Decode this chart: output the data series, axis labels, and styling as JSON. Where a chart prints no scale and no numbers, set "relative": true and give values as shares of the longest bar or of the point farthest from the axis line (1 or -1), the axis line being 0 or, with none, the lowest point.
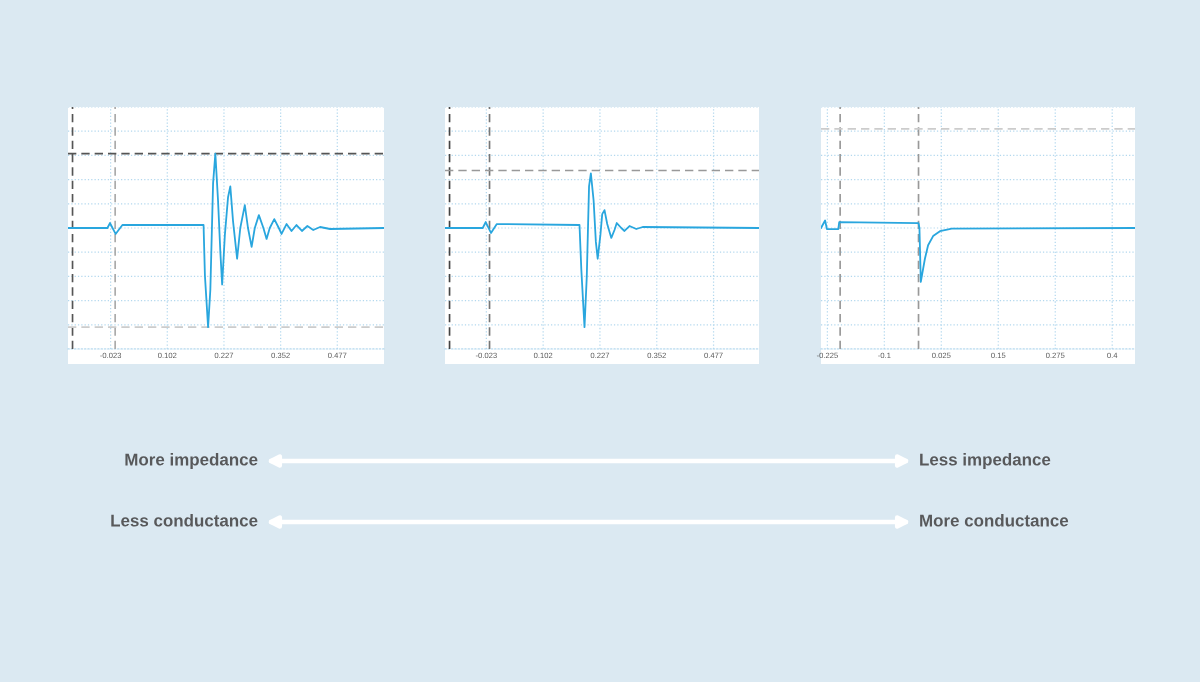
{
  "chart_data": [
    {
      "type": "line",
      "relative": true,
      "tick_labels": "x",
      "grid": true,
      "xlim": [
        -0.117,
        0.58
      ],
      "xticks": [
        -0.023,
        0.102,
        0.227,
        0.352,
        0.477
      ],
      "series": [
        {
          "color": "#29a6de",
          "x": [
            -0.117,
            -0.03,
            -0.0245,
            -0.012,
            0.003,
            0.182,
            0.185,
            0.192,
            0.197,
            0.203,
            0.208,
            0.214,
            0.219,
            0.223,
            0.229,
            0.236,
            0.241,
            0.247,
            0.256,
            0.263,
            0.273,
            0.28,
            0.288,
            0.295,
            0.304,
            0.314,
            0.321,
            0.328,
            0.338,
            0.348,
            0.354,
            0.365,
            0.376,
            0.387,
            0.399,
            0.411,
            0.424,
            0.439,
            0.461,
            0.58
          ],
          "values": [
            0,
            0,
            0.05,
            -0.06,
            0.03,
            0.03,
            -0.48,
            -1,
            -0.62,
            0.45,
            0.75,
            0.27,
            -0.24,
            -0.57,
            -0.07,
            0.31,
            0.42,
            0.07,
            -0.31,
            0,
            0.23,
            0,
            -0.19,
            0,
            0.13,
            0,
            -0.11,
            0,
            0.09,
            0,
            -0.06,
            0.04,
            -0.03,
            0.03,
            -0.03,
            0.02,
            -0.02,
            0.01,
            -0.01,
            0
          ]
        }
      ],
      "ref_lines": [
        {
          "axis": "x",
          "value": -0.107,
          "color": "#555555",
          "line_style": "dashed"
        },
        {
          "axis": "x",
          "value": -0.013,
          "color": "#aaaaaa",
          "line_style": "dashed"
        },
        {
          "axis": "y",
          "value": 0.75,
          "color": "#555555",
          "line_style": "dashed"
        },
        {
          "axis": "y",
          "value": -1,
          "color": "#cccccc",
          "line_style": "dashed"
        }
      ]
    },
    {
      "type": "line",
      "relative": true,
      "tick_labels": "x",
      "grid": true,
      "xlim": [
        -0.114,
        0.577
      ],
      "xticks": [
        -0.023,
        0.102,
        0.227,
        0.352,
        0.477
      ],
      "series": [
        {
          "color": "#29a6de",
          "x": [
            -0.114,
            -0.031,
            -0.0245,
            -0.0128,
            0.0,
            0.182,
            0.186,
            0.193,
            0.198,
            0.203,
            0.207,
            0.213,
            0.218,
            0.222,
            0.228,
            0.232,
            0.237,
            0.243,
            0.252,
            0.259,
            0.264,
            0.274,
            0.281,
            0.292,
            0.307,
            0.321,
            0.577
          ],
          "values": [
            0,
            0,
            0.06,
            -0.05,
            0.04,
            0.03,
            -0.42,
            -1,
            -0.49,
            0.42,
            0.55,
            0.28,
            -0.14,
            -0.31,
            -0.07,
            0.14,
            0.18,
            0.04,
            -0.1,
            -0.02,
            0.05,
            0,
            -0.03,
            0.02,
            -0.01,
            0.01,
            0
          ]
        }
      ],
      "ref_lines": [
        {
          "axis": "x",
          "value": -0.104,
          "color": "#444444",
          "line_style": "dashed"
        },
        {
          "axis": "x",
          "value": -0.016,
          "color": "#777777",
          "line_style": "dashed"
        },
        {
          "axis": "y",
          "value": 0.58,
          "color": "#999999",
          "line_style": "dashed"
        }
      ]
    },
    {
      "type": "line",
      "relative": true,
      "tick_labels": "x",
      "grid": true,
      "xlim": [
        -0.239,
        0.45
      ],
      "xticks": [
        -0.225,
        -0.1,
        0.025,
        0.15,
        0.275,
        0.4
      ],
      "series": [
        {
          "color": "#29a6de",
          "x": [
            -0.239,
            -0.23,
            -0.226,
            -0.201,
            -0.199,
            -0.025,
            -0.023,
            -0.02,
            -0.011,
            -0.004,
            0.007,
            0.022,
            0.048,
            0.45
          ],
          "values": [
            0,
            0.14,
            -0.02,
            -0.02,
            0.11,
            0.09,
            0,
            -1,
            -0.57,
            -0.32,
            -0.15,
            -0.06,
            -0.01,
            0
          ]
        }
      ],
      "ref_lines": [
        {
          "axis": "x",
          "value": -0.197,
          "color": "#999999",
          "line_style": "dashed"
        },
        {
          "axis": "x",
          "value": -0.025,
          "color": "#999999",
          "line_style": "dashed"
        },
        {
          "axis": "y",
          "value": 1.84,
          "color": "#cccccc",
          "line_style": "dashed"
        }
      ]
    },
    {
      "type": "other",
      "annotations": [
        "More impedance",
        "Less impedance",
        "Less conductance",
        "More conductance"
      ]
    }
  ]
}
